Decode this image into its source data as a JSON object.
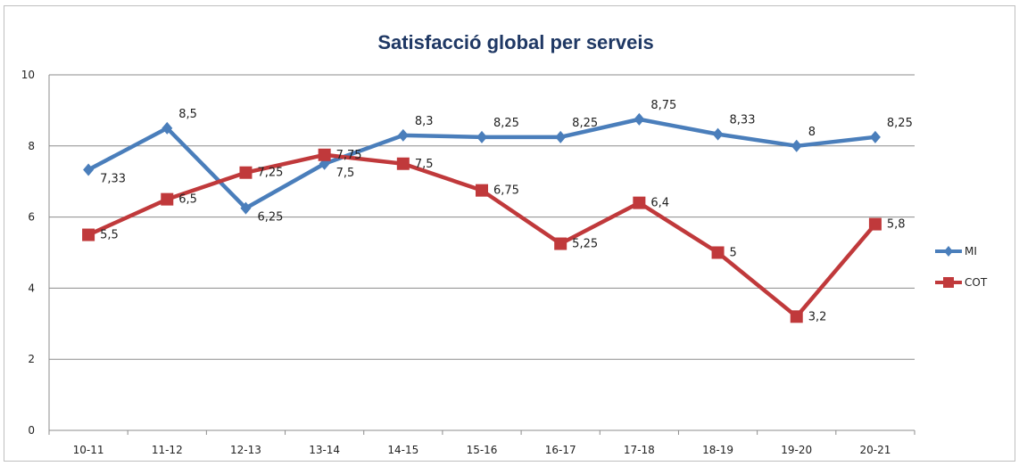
{
  "chart_data": {
    "type": "line",
    "title": "Satisfacció global per serveis",
    "categories": [
      "10-11",
      "11-12",
      "12-13",
      "13-14",
      "14-15",
      "15-16",
      "16-17",
      "17-18",
      "18-19",
      "19-20",
      "20-21"
    ],
    "ylim": [
      0,
      10
    ],
    "yticks": [
      0,
      2,
      4,
      6,
      8,
      10
    ],
    "grid": true,
    "legend_position": "right",
    "series": [
      {
        "name": "MI",
        "color": "#4a7ebb",
        "marker": "diamond",
        "values": [
          7.33,
          8.5,
          6.25,
          7.5,
          8.3,
          8.25,
          8.25,
          8.75,
          8.33,
          8,
          8.25
        ],
        "labels": [
          "7,33",
          "8,5",
          "6,25",
          "7,5",
          "8,3",
          "8,25",
          "8,25",
          "8,75",
          "8,33",
          "8",
          "8,25"
        ]
      },
      {
        "name": "COT",
        "color": "#c0393b",
        "marker": "square",
        "values": [
          5.5,
          6.5,
          7.25,
          7.75,
          7.5,
          6.75,
          5.25,
          6.4,
          5,
          3.2,
          5.8
        ],
        "labels": [
          "5,5",
          "6,5",
          "7,25",
          "7,75",
          "7,5",
          "6,75",
          "5,25",
          "6,4",
          "5",
          "3,2",
          "5,8"
        ]
      }
    ]
  }
}
